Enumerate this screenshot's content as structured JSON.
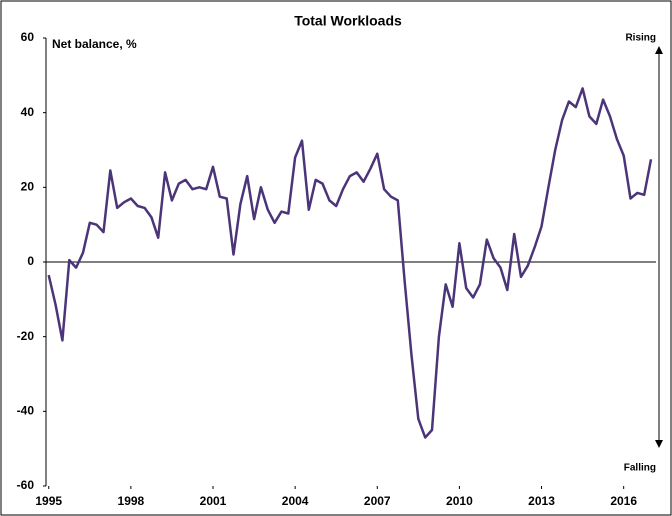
{
  "chart_data": {
    "type": "line",
    "title": "Total Workloads",
    "y_label": "Net balance, %",
    "annotations": [
      "Rising",
      "Falling"
    ],
    "x": [
      1995,
      1995.25,
      1995.5,
      1995.75,
      1996,
      1996.25,
      1996.5,
      1996.75,
      1997,
      1997.25,
      1997.5,
      1997.75,
      1998,
      1998.25,
      1998.5,
      1998.75,
      1999,
      1999.25,
      1999.5,
      1999.75,
      2000,
      2000.25,
      2000.5,
      2000.75,
      2001,
      2001.25,
      2001.5,
      2001.75,
      2002,
      2002.25,
      2002.5,
      2002.75,
      2003,
      2003.25,
      2003.5,
      2003.75,
      2004,
      2004.25,
      2004.5,
      2004.75,
      2005,
      2005.25,
      2005.5,
      2005.75,
      2006,
      2006.25,
      2006.5,
      2006.75,
      2007,
      2007.25,
      2007.5,
      2007.75,
      2008,
      2008.25,
      2008.5,
      2008.75,
      2009,
      2009.25,
      2009.5,
      2009.75,
      2010,
      2010.25,
      2010.5,
      2010.75,
      2011,
      2011.25,
      2011.5,
      2011.75,
      2012,
      2012.25,
      2012.5,
      2012.75,
      2013,
      2013.25,
      2013.5,
      2013.75,
      2014,
      2014.25,
      2014.5,
      2014.75,
      2015,
      2015.25,
      2015.5,
      2015.75,
      2016,
      2016.25,
      2016.5,
      2016.75,
      2017
    ],
    "series": [
      {
        "name": "Net balance",
        "color": "#4b3578",
        "values": [
          -3.5,
          -11.5,
          -21,
          0.5,
          -1.5,
          2.5,
          10.5,
          10,
          8,
          24.5,
          14.5,
          16,
          17,
          15,
          14.5,
          12,
          6.5,
          24,
          16.5,
          21,
          22,
          19.5,
          20,
          19.5,
          25.5,
          17.5,
          17,
          2,
          15.5,
          23,
          11.5,
          20,
          14,
          10.5,
          13.5,
          13,
          28,
          32.5,
          14,
          22,
          21,
          16.5,
          15,
          19.5,
          23,
          24,
          21.5,
          25,
          29,
          19.5,
          17.5,
          16.5,
          -5,
          -25,
          -42,
          -47,
          -45,
          -20,
          -6,
          -12,
          5,
          -7,
          -9.5,
          -6,
          6,
          1,
          -1.5,
          -7.5,
          7.5,
          -4,
          -1,
          4,
          9.5,
          20,
          30,
          38,
          43,
          41.5,
          46.5,
          39,
          37,
          43.5,
          39,
          33,
          28.5,
          17,
          18.5,
          18,
          27.5
        ]
      }
    ],
    "xlim": [
      1994.9,
      2017.4
    ],
    "xticks": [
      1995,
      1998,
      2001,
      2004,
      2007,
      2010,
      2013,
      2016
    ],
    "ylim": [
      -60,
      60
    ],
    "yticks": [
      -60,
      -40,
      -20,
      0,
      20,
      40,
      60
    ]
  }
}
